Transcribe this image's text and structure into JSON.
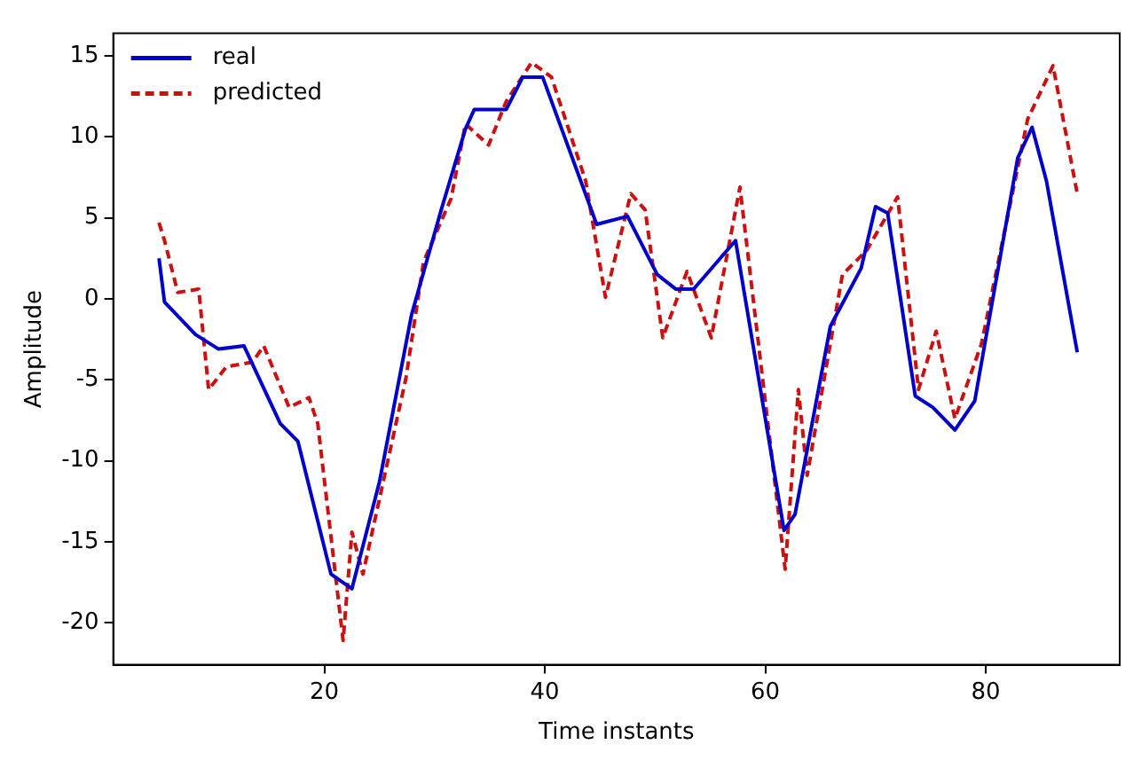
{
  "chart_data": {
    "type": "line",
    "xlabel": "Time instants",
    "ylabel": "Amplitude",
    "xlim": [
      0.85,
      92.15
    ],
    "ylim": [
      -22.6,
      16.4
    ],
    "xticks": [
      20,
      40,
      60,
      80
    ],
    "yticks": [
      -20,
      -15,
      -10,
      -5,
      0,
      5,
      10,
      15
    ],
    "grid": false,
    "legend": "top left",
    "marker": "none",
    "series": [
      {
        "name": "real",
        "color": "#0000cd",
        "line_style": "solid",
        "x": [
          5,
          5.5,
          8.3,
          10.4,
          12.7,
          16,
          17.6,
          20.6,
          22.5,
          25,
          27.9,
          30.6,
          32.8,
          33.6,
          36.5,
          38,
          39.8,
          44.7,
          47.5,
          50.2,
          51.9,
          53.5,
          57.3,
          61.7,
          62.7,
          65.9,
          68.7,
          70,
          71.1,
          73.6,
          75.2,
          77.2,
          79,
          82.9,
          84.2,
          85.5,
          88.3
        ],
        "values": [
          2.5,
          -0.2,
          -2.2,
          -3.1,
          -2.9,
          -7.7,
          -8.8,
          -17,
          -17.9,
          -11.3,
          -1,
          5.5,
          10.5,
          11.7,
          11.7,
          13.7,
          13.7,
          4.6,
          5.1,
          1.5,
          0.6,
          0.6,
          3.6,
          -14.3,
          -13.3,
          -1.7,
          1.9,
          5.7,
          5.3,
          -6,
          -6.7,
          -8.1,
          -6.3,
          8.7,
          10.6,
          7.3,
          -3.3
        ]
      },
      {
        "name": "predicted",
        "color": "#cc1010",
        "line_style": "dashed",
        "x": [
          5,
          5.5,
          6.7,
          8.6,
          9.5,
          11.1,
          13.5,
          14.5,
          16.8,
          18.6,
          19.4,
          21.7,
          22.5,
          23.5,
          27.4,
          29,
          31.5,
          32.8,
          34.9,
          36.5,
          38.8,
          40.6,
          43.7,
          45.5,
          47.8,
          49.1,
          50.7,
          52.9,
          55.1,
          57.7,
          61.8,
          63,
          63.8,
          67,
          69.2,
          72,
          73.9,
          75.5,
          77.2,
          79.6,
          83.8,
          86.1,
          88.3
        ],
        "values": [
          4.7,
          3.6,
          0.4,
          0.6,
          -5.6,
          -4.2,
          -3.9,
          -2.9,
          -6.7,
          -6.1,
          -7.7,
          -21.1,
          -14.4,
          -17,
          -4.9,
          2.3,
          6.2,
          10.8,
          9.5,
          12.2,
          14.6,
          13.7,
          7.3,
          0.1,
          6.5,
          5.5,
          -2.4,
          1.7,
          -2.4,
          6.9,
          -16.7,
          -5.6,
          -10.9,
          1.5,
          3,
          6.3,
          -5.6,
          -2,
          -7.4,
          -2.8,
          11.1,
          14.4,
          6.5
        ]
      }
    ]
  }
}
